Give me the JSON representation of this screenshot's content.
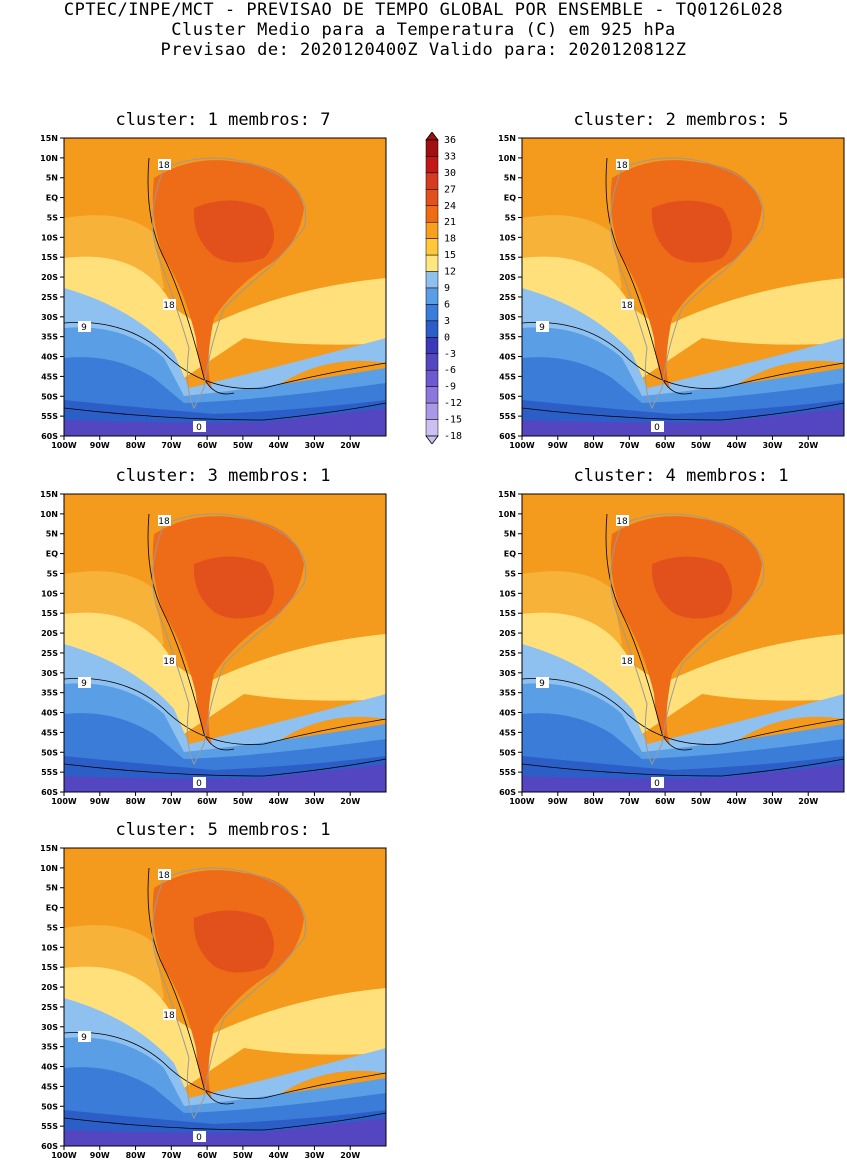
{
  "header": {
    "line1": "CPTEC/INPE/MCT - PREVISAO DE TEMPO GLOBAL POR ENSEMBLE - TQ0126L028",
    "line2": "Cluster Medio para a Temperatura (C) em 925 hPa",
    "line3": "Previsao de: 2020120400Z   Valido para: 2020120812Z"
  },
  "panels": [
    {
      "title": "cluster: 1   membros: 7"
    },
    {
      "title": "cluster: 2   membros: 5"
    },
    {
      "title": "cluster: 3   membros: 1"
    },
    {
      "title": "cluster: 4   membros: 1"
    },
    {
      "title": "cluster: 5   membros: 1"
    }
  ],
  "lat_labels": [
    "15N",
    "10N",
    "5N",
    "EQ",
    "5S",
    "10S",
    "15S",
    "20S",
    "25S",
    "30S",
    "35S",
    "40S",
    "45S",
    "50S",
    "55S",
    "60S"
  ],
  "lon_labels": [
    "100W",
    "90W",
    "80W",
    "70W",
    "60W",
    "50W",
    "40W",
    "30W",
    "20W"
  ],
  "contour_labels": [
    "18",
    "18",
    "9",
    "0"
  ],
  "colorbar": {
    "levels": [
      "36",
      "33",
      "30",
      "27",
      "24",
      "21",
      "18",
      "15",
      "12",
      "9",
      "6",
      "3",
      "0",
      "-3",
      "-6",
      "-9",
      "-12",
      "-15",
      "-18"
    ],
    "colors": [
      "#a01010",
      "#c01818",
      "#d63a20",
      "#e2501c",
      "#f06c14",
      "#f7a020",
      "#ffc83a",
      "#ffe680",
      "#8ec0f0",
      "#5a9ee6",
      "#3a7cd8",
      "#2c5ec8",
      "#3a3ab8",
      "#5446c0",
      "#6e5ad0",
      "#8c78dc",
      "#aa98e6",
      "#ccc0f0"
    ]
  },
  "palette": {
    "warm1": "#f49a1c",
    "warm2": "#f7b23a",
    "warm3": "#ffe07a",
    "hot1": "#ee6c18",
    "hot2": "#e2501c",
    "cool1": "#8ec0f0",
    "cool2": "#5a9ee6",
    "cool3": "#3a7cd8",
    "cold1": "#2c5ec8",
    "cold2": "#5446c0"
  }
}
